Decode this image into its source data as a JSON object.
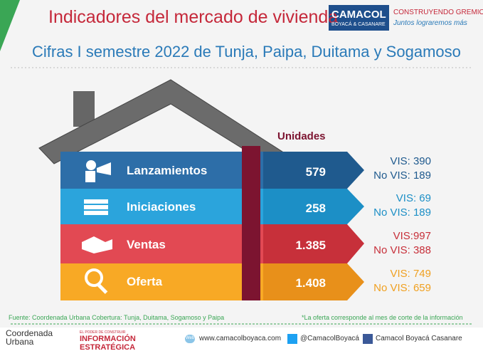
{
  "header": {
    "title": "Indicadores del mercado de vivienda",
    "subtitle": "Cifras I semestre 2022 de Tunja, Paipa, Duitama y Sogamoso",
    "logo": {
      "name": "CAMACOL",
      "region": "BOYACÁ & CASANARE",
      "slogan": "CONSTRUYENDO GREMIO",
      "tagline": "Juntos lograremos más"
    }
  },
  "table": {
    "column_header": "Unidades",
    "rows": [
      {
        "label": "Lanzamientos",
        "units": "579",
        "vis": "VIS: 390",
        "no_vis": "No VIS: 189"
      },
      {
        "label": "Iniciaciones",
        "units": "258",
        "vis": "VIS: 69",
        "no_vis": "No VIS: 189"
      },
      {
        "label": "Ventas",
        "units": "1.385",
        "vis": "VIS:997",
        "no_vis": "No VIS: 388"
      },
      {
        "label": "Oferta",
        "units": "1.408",
        "vis": "VIS: 749",
        "no_vis": "No VIS: 659"
      }
    ]
  },
  "notes": {
    "source": "Fuente: Coordenada Urbana Cobertura: Tunja, Duitama, Sogamoso y Paipa",
    "footnote": "*La oferta corresponde al mes de corte de la información"
  },
  "footer": {
    "coordenada": "Coordenada Urbana",
    "info_tagline": "EL PODER DE CONSTRUIR",
    "info_title": "INFORMACIÓN ESTRATÉGICA",
    "web_label": "Web",
    "website": "www.camacolboyaca.com",
    "twitter": "@CamacolBoyacá",
    "facebook": "Camacol Boyacá Casanare"
  }
}
